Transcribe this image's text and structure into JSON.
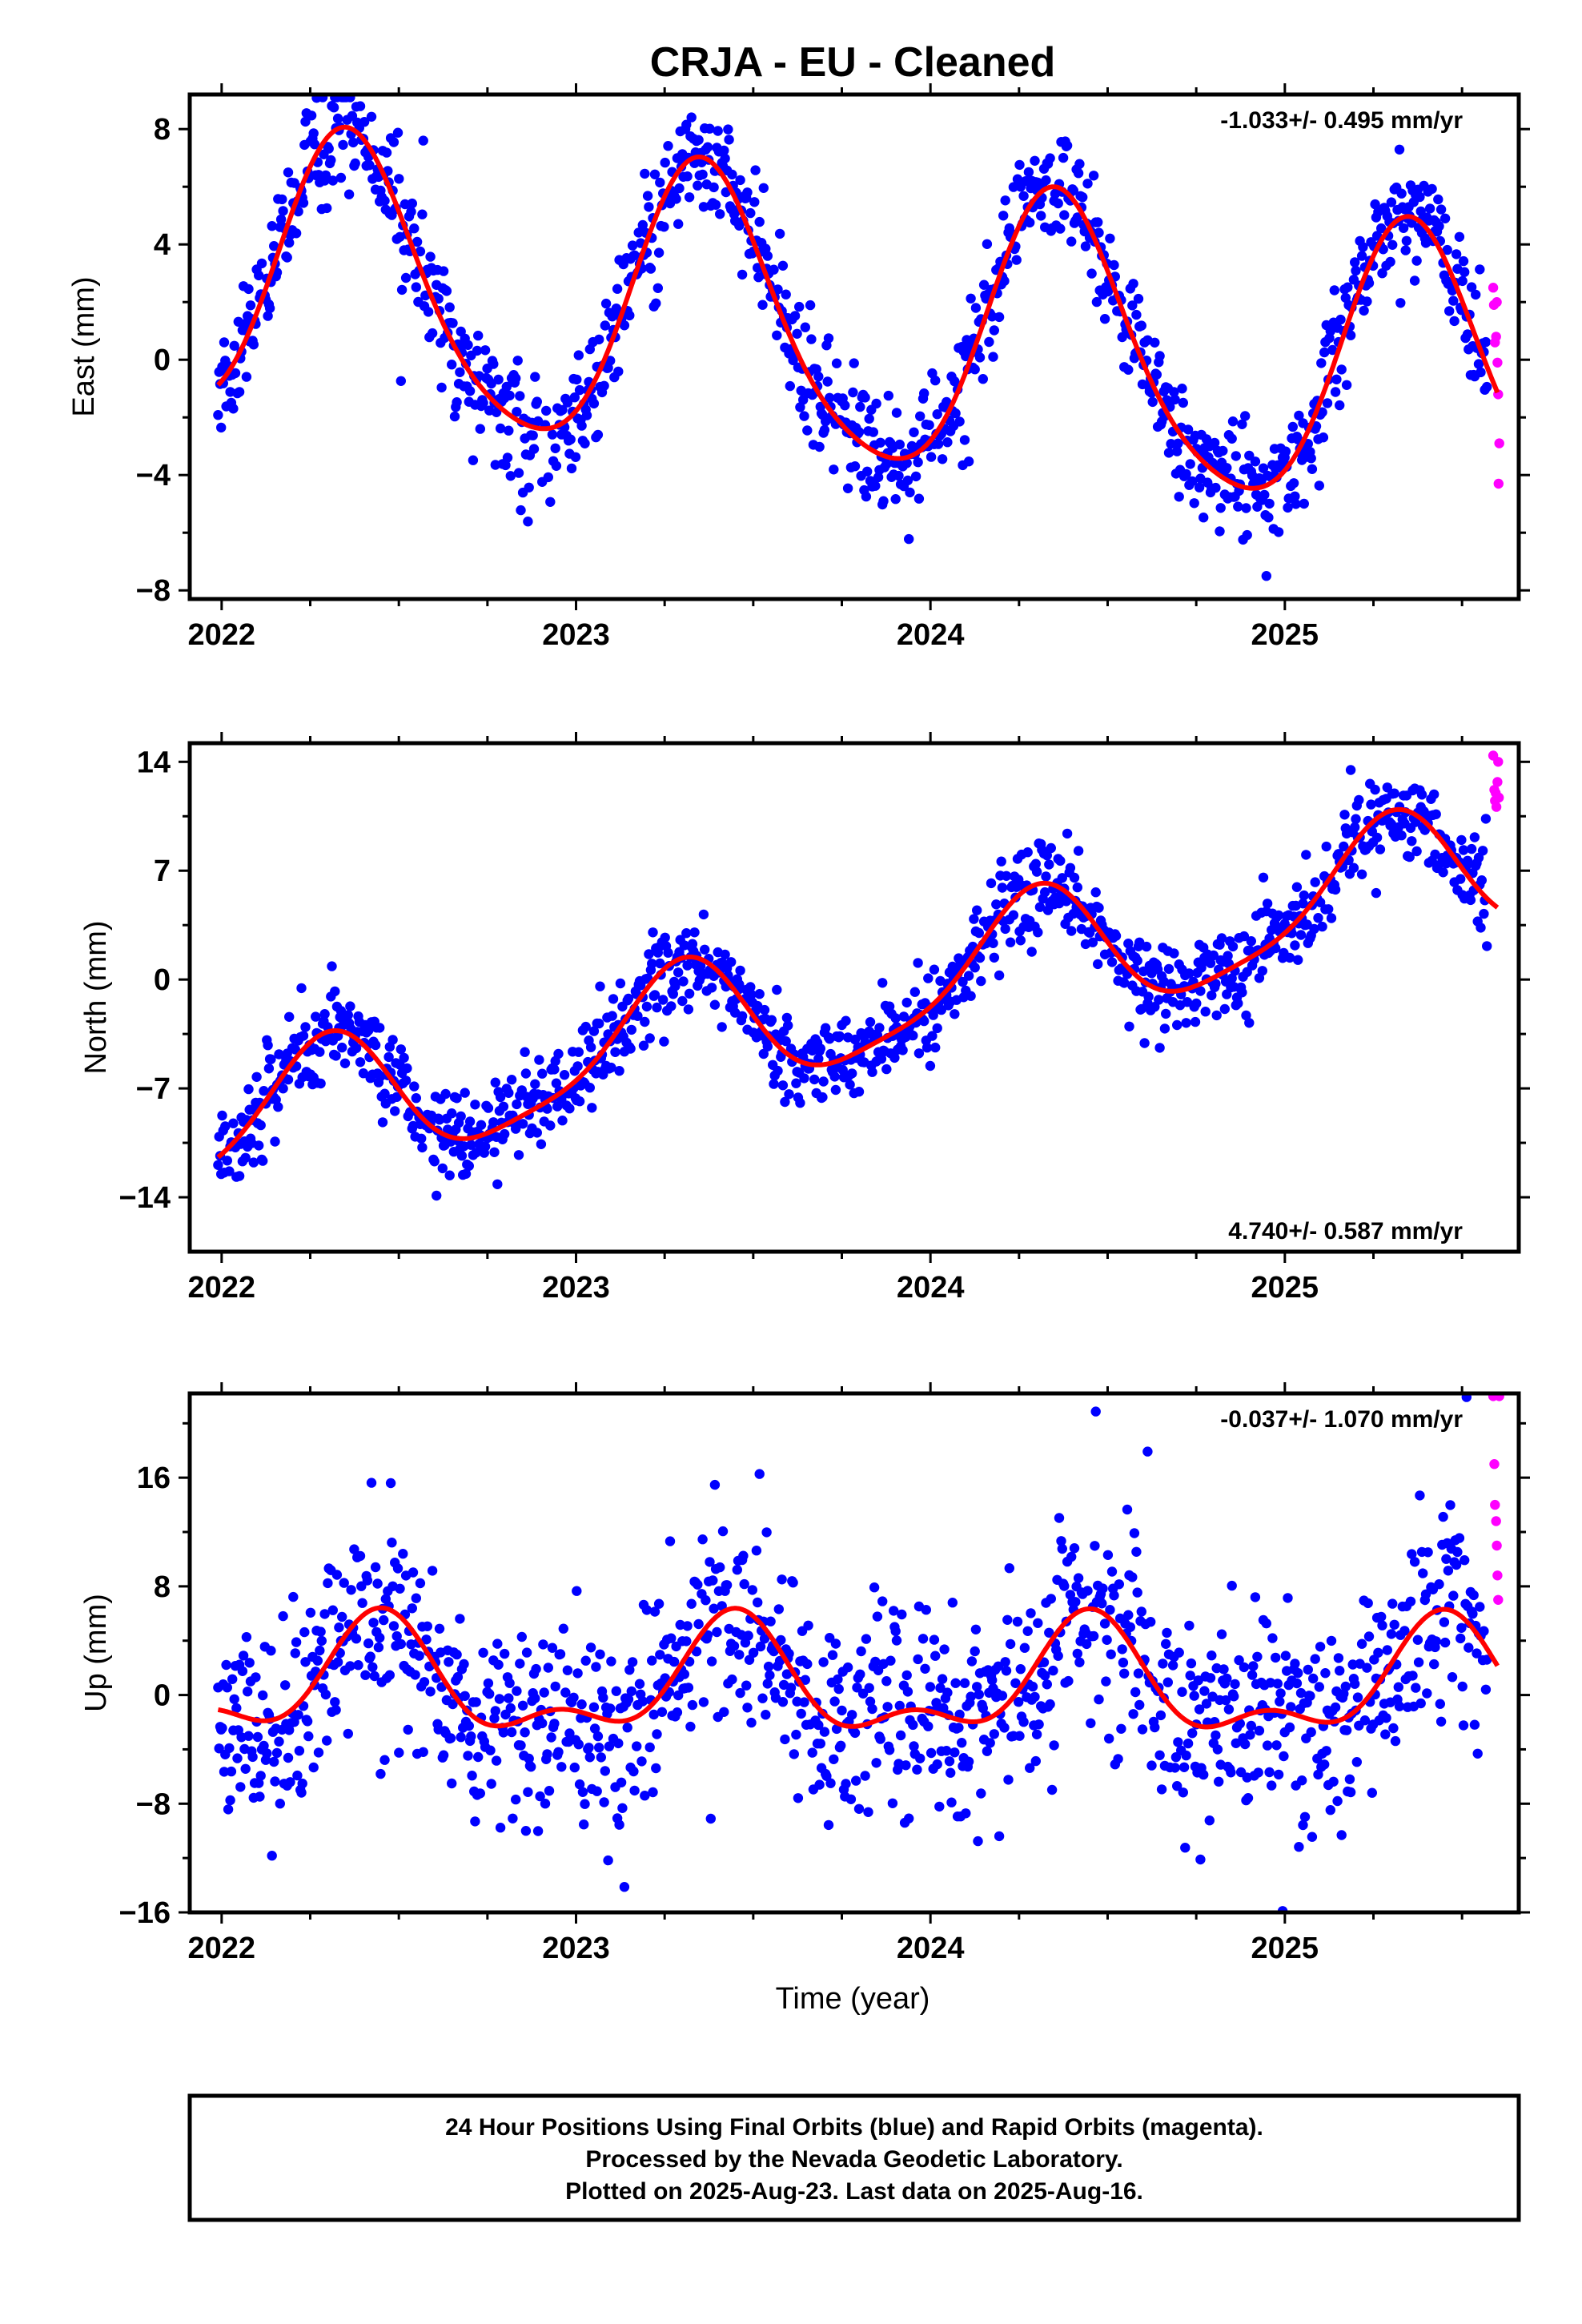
{
  "page_title": "CRJA  - EU - Cleaned",
  "x_axis": {
    "label": "Time (year)",
    "ticks": [
      "2022",
      "2023",
      "2024",
      "2025"
    ]
  },
  "footer": {
    "line1": "24 Hour Positions Using Final Orbits (blue) and Rapid Orbits (magenta).",
    "line2": "Processed by the Nevada Geodetic Laboratory.",
    "line3": "Plotted on 2025-Aug-23. Last data on 2025-Aug-16."
  },
  "colors": {
    "final_orbits": "#0000ff",
    "rapid_orbits": "#ff00ff",
    "model_fit": "#ff0000",
    "frame": "#000000"
  },
  "chart_data": [
    {
      "type": "scatter",
      "component": "east",
      "ylabel": "East (mm)",
      "rate_text": "-1.033+/- 0.495 mm/yr",
      "rate_position": "top-right",
      "xlim": [
        2021.91,
        2025.66
      ],
      "ylim": [
        -8.3,
        9.2
      ],
      "yticks": [
        -8,
        -4,
        0,
        4,
        8
      ],
      "ytick_labels": [
        "−8",
        "−4",
        "0",
        "4",
        "8"
      ],
      "model": {
        "offset": 1.0,
        "trend": -1.033,
        "t0": 2023.8,
        "annual_sin": 3.7,
        "annual_cos": -3.2,
        "semiannual_sin": -0.6,
        "semiannual_cos": -0.4,
        "endpoint_ref_year": 2025.6
      },
      "scatter_sd": 1.0,
      "final_range": [
        2021.99,
        2025.57
      ],
      "rapid_points": [
        [
          2025.588,
          2.5
        ],
        [
          2025.59,
          1.9
        ],
        [
          2025.593,
          0.6
        ],
        [
          2025.596,
          0.8
        ],
        [
          2025.598,
          2.0
        ],
        [
          2025.6,
          -0.1
        ],
        [
          2025.602,
          -1.2
        ],
        [
          2025.605,
          -2.9
        ],
        [
          2025.603,
          -4.3
        ]
      ]
    },
    {
      "type": "scatter",
      "component": "north",
      "ylabel": "North (mm)",
      "rate_text": "4.740+/- 0.587 mm/yr",
      "rate_position": "bottom-right",
      "xlim": [
        2021.91,
        2025.66
      ],
      "ylim": [
        -17.5,
        15.2
      ],
      "yticks": [
        -14,
        -7,
        0,
        7,
        14
      ],
      "ytick_labels": [
        "−14",
        "−7",
        "0",
        "7",
        "14"
      ],
      "model": {
        "offset": -1.3,
        "trend": 4.74,
        "t0": 2023.8,
        "annual_sin": 4.1,
        "annual_cos": -0.9,
        "semiannual_sin": -0.8,
        "semiannual_cos": -0.5,
        "endpoint_ref_year": 2025.6
      },
      "scatter_sd": 1.4,
      "final_range": [
        2021.99,
        2025.57
      ],
      "rapid_points": [
        [
          2025.588,
          14.4
        ],
        [
          2025.591,
          12.2
        ],
        [
          2025.593,
          11.5
        ],
        [
          2025.595,
          12.0
        ],
        [
          2025.597,
          11.1
        ],
        [
          2025.6,
          12.7
        ],
        [
          2025.602,
          14.0
        ],
        [
          2025.604,
          11.7
        ]
      ]
    },
    {
      "type": "scatter",
      "component": "up",
      "ylabel": "Up (mm)",
      "rate_text": "-0.037+/- 1.070 mm/yr",
      "rate_position": "top-right",
      "xlim": [
        2021.91,
        2025.66
      ],
      "ylim": [
        -16.0,
        22.2
      ],
      "yticks": [
        -16,
        -8,
        0,
        8,
        16
      ],
      "ytick_labels": [
        "−16",
        "−8",
        "0",
        "8",
        "16"
      ],
      "model": {
        "offset": 0.7,
        "trend": -0.037,
        "t0": 2023.8,
        "annual_sin": 1.3,
        "annual_cos": -3.5,
        "semiannual_sin": -1.1,
        "semiannual_cos": 1.6,
        "endpoint_ref_year": 2025.6
      },
      "scatter_sd": 3.8,
      "final_range": [
        2021.99,
        2025.57
      ],
      "rapid_points": [
        [
          2025.588,
          22.0
        ],
        [
          2025.591,
          17.0
        ],
        [
          2025.593,
          14.0
        ],
        [
          2025.596,
          12.8
        ],
        [
          2025.598,
          11.0
        ],
        [
          2025.6,
          8.8
        ],
        [
          2025.602,
          7.0
        ],
        [
          2025.605,
          22.0
        ]
      ]
    }
  ]
}
